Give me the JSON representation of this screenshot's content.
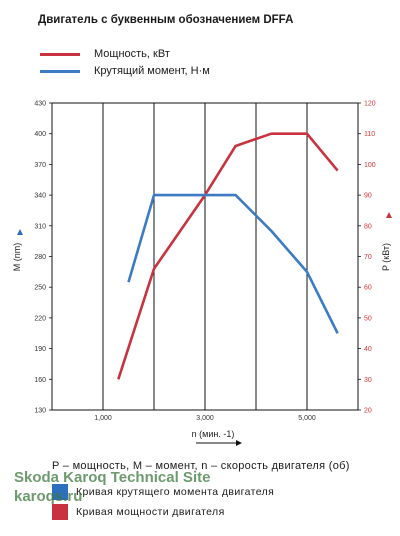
{
  "title": "Двигатель с буквенным обозначением DFFA",
  "legend": {
    "power": "Мощность, кВт",
    "torque": "Крутящий момент, Н·м"
  },
  "footnote": "P – мощность,  M – момент,  n – скорость  двигателя  (об)",
  "key": {
    "torque": "Кривая  крутящего  момента  двигателя",
    "power": "Кривая  мощности  двигателя"
  },
  "watermark": {
    "line1": "Skoda Karoq Technical Site",
    "line2": "karoqs.ru"
  },
  "colors": {
    "power": "#c8333f",
    "torque": "#3c7ac4",
    "grid": "#111111"
  },
  "chart_data": {
    "type": "line",
    "title": "Двигатель с буквенным обозначением DFFA",
    "xlabel": "n (мин. -1)",
    "ylabel_left": "M (nm)",
    "ylabel_right": "P (кВт)",
    "xlim": [
      0,
      6000
    ],
    "xticks": [
      1000,
      3000,
      5000
    ],
    "xtick_labels": [
      "1,000",
      "3,000",
      "5,000"
    ],
    "ylim_left": [
      130,
      430
    ],
    "yticks_left": [
      130,
      160,
      190,
      220,
      250,
      280,
      310,
      340,
      370,
      400,
      430
    ],
    "ylim_right": [
      20,
      120
    ],
    "yticks_right": [
      20,
      30,
      40,
      50,
      60,
      70,
      80,
      90,
      100,
      110,
      120
    ],
    "grid": true,
    "series": [
      {
        "name": "Мощность, кВт",
        "axis": "right",
        "color": "#c8333f",
        "x": [
          1300,
          2000,
          3000,
          3600,
          4300,
          5000,
          5600
        ],
        "y": [
          30,
          66,
          90,
          106,
          110,
          110,
          98
        ]
      },
      {
        "name": "Крутящий момент, Н·м",
        "axis": "left",
        "color": "#3c7ac4",
        "x": [
          1500,
          2000,
          3000,
          3600,
          4300,
          5000,
          5600
        ],
        "y": [
          255,
          340,
          340,
          340,
          305,
          265,
          205
        ]
      }
    ]
  }
}
